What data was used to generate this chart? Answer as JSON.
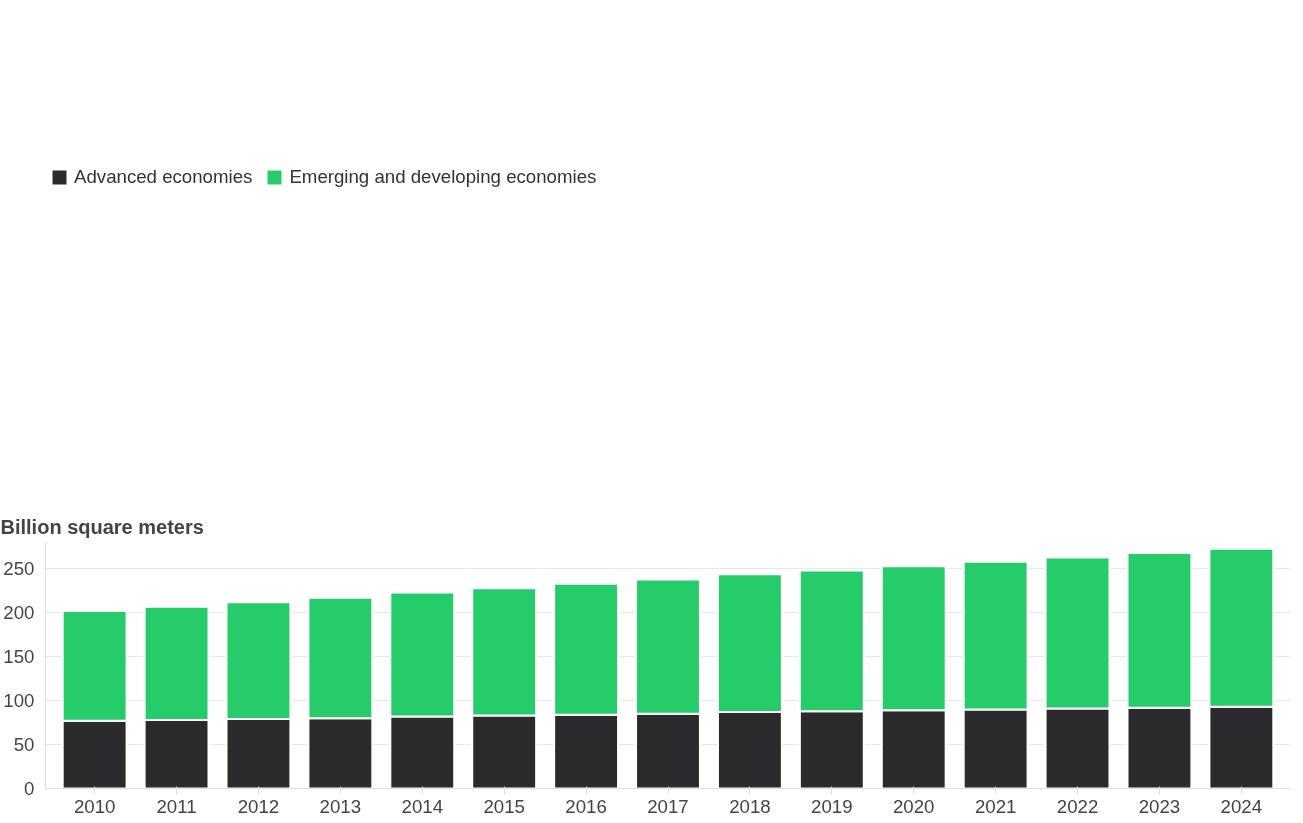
{
  "chart_data": {
    "type": "bar",
    "stacked": true,
    "ylabel": "Billion square meters",
    "categories": [
      "2010",
      "2011",
      "2012",
      "2013",
      "2014",
      "2015",
      "2016",
      "2017",
      "2018",
      "2019",
      "2020",
      "2021",
      "2022",
      "2023",
      "2024"
    ],
    "series": [
      {
        "name": "Advanced economies",
        "color": "#2b2b2d",
        "values": [
          77,
          78,
          79,
          80,
          82,
          83,
          84,
          85,
          87,
          88,
          89,
          90,
          91,
          92,
          93
        ]
      },
      {
        "name": "Emerging and developing economies",
        "color": "#26cc6a",
        "values": [
          125,
          129,
          133,
          137,
          141,
          145,
          149,
          153,
          157,
          160,
          164,
          168,
          172,
          176,
          180
        ]
      }
    ],
    "ylim": [
      0,
      280
    ],
    "yticks": [
      0,
      50,
      100,
      150,
      200,
      250
    ],
    "grid": "y",
    "legend": "top"
  }
}
